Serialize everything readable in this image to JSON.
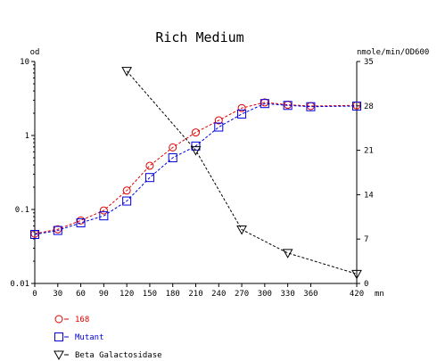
{
  "chart_data": {
    "type": "line",
    "title": "Rich Medium",
    "left_axis": {
      "unit_label": "od",
      "scale": "log",
      "range": [
        0.01,
        10
      ],
      "ticks": [
        {
          "value": 0.01,
          "label": "0.01"
        },
        {
          "value": 0.1,
          "label": "0.1"
        },
        {
          "value": 1,
          "label": "1"
        },
        {
          "value": 10,
          "label": "10"
        }
      ]
    },
    "right_axis": {
      "unit_label": "nmole/min/OD600",
      "scale": "linear",
      "range": [
        0,
        35
      ],
      "ticks": [
        {
          "value": 0,
          "label": "0"
        },
        {
          "value": 7,
          "label": "7"
        },
        {
          "value": 14,
          "label": "14"
        },
        {
          "value": 21,
          "label": "21"
        },
        {
          "value": 28,
          "label": "28"
        },
        {
          "value": 35,
          "label": "35"
        }
      ]
    },
    "x_axis": {
      "range": [
        0,
        420
      ],
      "unit_label": "mn",
      "ticks": [
        {
          "value": 0,
          "label": "0"
        },
        {
          "value": 30,
          "label": "30"
        },
        {
          "value": 60,
          "label": "60"
        },
        {
          "value": 90,
          "label": "90"
        },
        {
          "value": 120,
          "label": "120"
        },
        {
          "value": 150,
          "label": "150"
        },
        {
          "value": 180,
          "label": "180"
        },
        {
          "value": 210,
          "label": "210"
        },
        {
          "value": 240,
          "label": "240"
        },
        {
          "value": 270,
          "label": "270"
        },
        {
          "value": 300,
          "label": "300"
        },
        {
          "value": 330,
          "label": "330"
        },
        {
          "value": 360,
          "label": "360"
        },
        {
          "value": 420,
          "label": "420"
        }
      ]
    },
    "series": [
      {
        "name": "168",
        "axis": "left",
        "marker": "circle",
        "color": "#dd0000",
        "points": [
          [
            0,
            0.047
          ],
          [
            30,
            0.054
          ],
          [
            60,
            0.071
          ],
          [
            90,
            0.097
          ],
          [
            120,
            0.18
          ],
          [
            150,
            0.39
          ],
          [
            180,
            0.69
          ],
          [
            210,
            1.1
          ],
          [
            240,
            1.6
          ],
          [
            270,
            2.35
          ],
          [
            300,
            2.8
          ],
          [
            330,
            2.6
          ],
          [
            360,
            2.5
          ],
          [
            420,
            2.55
          ]
        ]
      },
      {
        "name": "Mutant",
        "axis": "left",
        "marker": "square",
        "color": "#0000dd",
        "points": [
          [
            0,
            0.046
          ],
          [
            30,
            0.052
          ],
          [
            60,
            0.066
          ],
          [
            90,
            0.082
          ],
          [
            120,
            0.13
          ],
          [
            150,
            0.27
          ],
          [
            180,
            0.5
          ],
          [
            210,
            0.72
          ],
          [
            240,
            1.3
          ],
          [
            270,
            1.95
          ],
          [
            300,
            2.7
          ],
          [
            330,
            2.55
          ],
          [
            360,
            2.45
          ],
          [
            420,
            2.5
          ]
        ]
      },
      {
        "name": "Beta Galactosidase",
        "axis": "right",
        "marker": "triangle-down",
        "color": "#000000",
        "points": [
          [
            120,
            33.5
          ],
          [
            210,
            21
          ],
          [
            270,
            8.5
          ],
          [
            330,
            4.8
          ],
          [
            420,
            1.5
          ]
        ]
      }
    ],
    "legend_position": "bottom-left",
    "grid": false
  }
}
